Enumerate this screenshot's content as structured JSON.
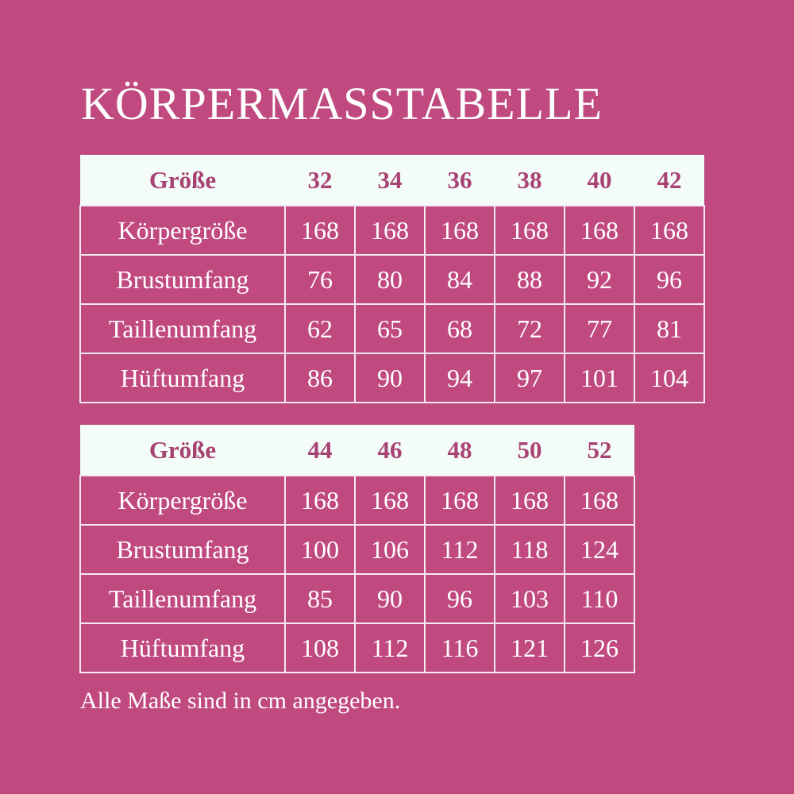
{
  "title": "KÖRPERMASSTABELLE",
  "tables": [
    {
      "header": [
        "Größe",
        "32",
        "34",
        "36",
        "38",
        "40",
        "42"
      ],
      "rows": [
        {
          "label": "Körpergröße",
          "values": [
            "168",
            "168",
            "168",
            "168",
            "168",
            "168"
          ]
        },
        {
          "label": "Brustumfang",
          "values": [
            "76",
            "80",
            "84",
            "88",
            "92",
            "96"
          ]
        },
        {
          "label": "Taillenumfang",
          "values": [
            "62",
            "65",
            "68",
            "72",
            "77",
            "81"
          ]
        },
        {
          "label": "Hüftumfang",
          "values": [
            "86",
            "90",
            "94",
            "97",
            "101",
            "104"
          ]
        }
      ]
    },
    {
      "header": [
        "Größe",
        "44",
        "46",
        "48",
        "50",
        "52"
      ],
      "rows": [
        {
          "label": "Körpergröße",
          "values": [
            "168",
            "168",
            "168",
            "168",
            "168"
          ]
        },
        {
          "label": "Brustumfang",
          "values": [
            "100",
            "106",
            "112",
            "118",
            "124"
          ]
        },
        {
          "label": "Taillenumfang",
          "values": [
            "85",
            "90",
            "96",
            "103",
            "110"
          ]
        },
        {
          "label": "Hüftumfang",
          "values": [
            "108",
            "112",
            "116",
            "121",
            "126"
          ]
        }
      ]
    }
  ],
  "note": "Alle Maße sind in cm angegeben.",
  "colors": {
    "background": "#c04a80",
    "header_bg": "#f3fcf8",
    "header_text": "#a84273",
    "text": "#ffffff"
  }
}
